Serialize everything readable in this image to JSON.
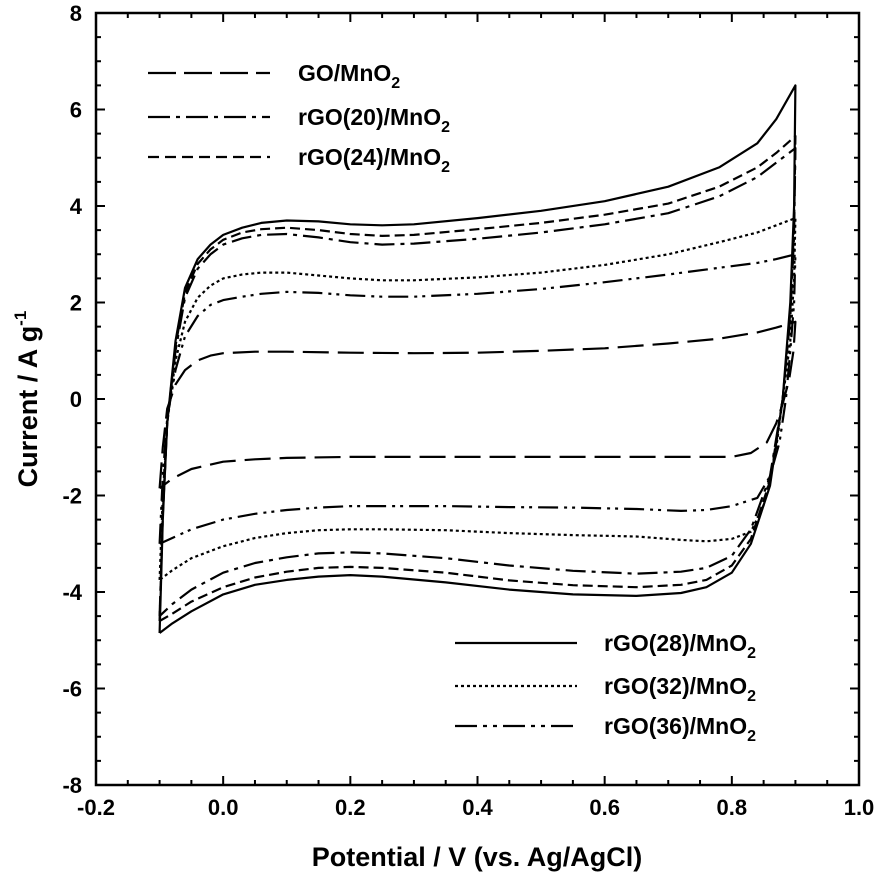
{
  "chart_data": {
    "type": "line",
    "xlabel": "Potential / V (vs. Ag/AgCl)",
    "ylabel": "Current / A g",
    "ylabel_superscript": "-1",
    "xlim": [
      -0.2,
      1.0
    ],
    "ylim": [
      -8,
      8
    ],
    "x_ticks": [
      "-0.2",
      "0.0",
      "0.2",
      "0.4",
      "0.6",
      "0.8",
      "1.0"
    ],
    "y_ticks": [
      "-8",
      "-6",
      "-4",
      "-2",
      "0",
      "2",
      "4",
      "6",
      "8"
    ],
    "grid": false,
    "legend_top_left": [
      {
        "name": "GO/MnO",
        "sub": "2",
        "style": "long-dash"
      },
      {
        "name": "rGO(20)/MnO",
        "sub": "2",
        "style": "dash-dot"
      },
      {
        "name": "rGO(24)/MnO",
        "sub": "2",
        "style": "short-dash"
      }
    ],
    "legend_bottom_right": [
      {
        "name": "rGO(28)/MnO",
        "sub": "2",
        "style": "solid"
      },
      {
        "name": "rGO(32)/MnO",
        "sub": "2",
        "style": "dotted"
      },
      {
        "name": "rGO(36)/MnO",
        "sub": "2",
        "style": "dash-dot-dot"
      }
    ],
    "series": [
      {
        "name": "rGO(28)/MnO2",
        "style": "solid",
        "anodic": [
          [
            -0.1,
            -4.85
          ],
          [
            -0.095,
            -2.5
          ],
          [
            -0.088,
            -0.5
          ],
          [
            -0.075,
            1.2
          ],
          [
            -0.06,
            2.3
          ],
          [
            -0.04,
            2.9
          ],
          [
            -0.02,
            3.2
          ],
          [
            0.0,
            3.4
          ],
          [
            0.03,
            3.55
          ],
          [
            0.06,
            3.65
          ],
          [
            0.1,
            3.7
          ],
          [
            0.15,
            3.68
          ],
          [
            0.2,
            3.62
          ],
          [
            0.25,
            3.6
          ],
          [
            0.3,
            3.62
          ],
          [
            0.4,
            3.75
          ],
          [
            0.5,
            3.9
          ],
          [
            0.6,
            4.1
          ],
          [
            0.7,
            4.4
          ],
          [
            0.78,
            4.8
          ],
          [
            0.84,
            5.3
          ],
          [
            0.87,
            5.8
          ],
          [
            0.9,
            6.5
          ]
        ],
        "cathodic": [
          [
            0.9,
            6.5
          ],
          [
            0.898,
            4.0
          ],
          [
            0.892,
            2.0
          ],
          [
            0.88,
            0.0
          ],
          [
            0.86,
            -1.8
          ],
          [
            0.83,
            -3.0
          ],
          [
            0.8,
            -3.6
          ],
          [
            0.76,
            -3.9
          ],
          [
            0.72,
            -4.02
          ],
          [
            0.65,
            -4.08
          ],
          [
            0.55,
            -4.05
          ],
          [
            0.45,
            -3.95
          ],
          [
            0.35,
            -3.8
          ],
          [
            0.25,
            -3.68
          ],
          [
            0.2,
            -3.65
          ],
          [
            0.15,
            -3.68
          ],
          [
            0.1,
            -3.75
          ],
          [
            0.05,
            -3.85
          ],
          [
            0.0,
            -4.05
          ],
          [
            -0.05,
            -4.4
          ],
          [
            -0.08,
            -4.65
          ],
          [
            -0.1,
            -4.85
          ]
        ]
      },
      {
        "name": "rGO(24)/MnO2",
        "style": "short-dash",
        "anodic": [
          [
            -0.1,
            -4.6
          ],
          [
            -0.095,
            -2.4
          ],
          [
            -0.088,
            -0.5
          ],
          [
            -0.075,
            1.1
          ],
          [
            -0.06,
            2.2
          ],
          [
            -0.04,
            2.8
          ],
          [
            -0.02,
            3.1
          ],
          [
            0.0,
            3.3
          ],
          [
            0.03,
            3.45
          ],
          [
            0.06,
            3.52
          ],
          [
            0.1,
            3.55
          ],
          [
            0.15,
            3.5
          ],
          [
            0.2,
            3.42
          ],
          [
            0.25,
            3.38
          ],
          [
            0.3,
            3.4
          ],
          [
            0.4,
            3.52
          ],
          [
            0.5,
            3.65
          ],
          [
            0.6,
            3.82
          ],
          [
            0.7,
            4.05
          ],
          [
            0.78,
            4.4
          ],
          [
            0.84,
            4.8
          ],
          [
            0.87,
            5.1
          ],
          [
            0.9,
            5.45
          ]
        ],
        "cathodic": [
          [
            0.9,
            5.45
          ],
          [
            0.898,
            3.6
          ],
          [
            0.892,
            1.8
          ],
          [
            0.88,
            0.0
          ],
          [
            0.86,
            -1.7
          ],
          [
            0.83,
            -2.9
          ],
          [
            0.8,
            -3.45
          ],
          [
            0.76,
            -3.75
          ],
          [
            0.72,
            -3.85
          ],
          [
            0.65,
            -3.9
          ],
          [
            0.55,
            -3.86
          ],
          [
            0.45,
            -3.76
          ],
          [
            0.35,
            -3.6
          ],
          [
            0.25,
            -3.5
          ],
          [
            0.2,
            -3.48
          ],
          [
            0.15,
            -3.5
          ],
          [
            0.1,
            -3.58
          ],
          [
            0.05,
            -3.7
          ],
          [
            0.0,
            -3.9
          ],
          [
            -0.05,
            -4.2
          ],
          [
            -0.08,
            -4.45
          ],
          [
            -0.1,
            -4.6
          ]
        ]
      },
      {
        "name": "rGO(20)/MnO2",
        "style": "dash-dot",
        "anodic": [
          [
            -0.1,
            -4.5
          ],
          [
            -0.095,
            -2.4
          ],
          [
            -0.088,
            -0.5
          ],
          [
            -0.075,
            1.0
          ],
          [
            -0.06,
            2.1
          ],
          [
            -0.04,
            2.7
          ],
          [
            -0.02,
            3.0
          ],
          [
            0.0,
            3.2
          ],
          [
            0.03,
            3.33
          ],
          [
            0.06,
            3.4
          ],
          [
            0.1,
            3.42
          ],
          [
            0.15,
            3.35
          ],
          [
            0.2,
            3.25
          ],
          [
            0.25,
            3.2
          ],
          [
            0.3,
            3.22
          ],
          [
            0.4,
            3.32
          ],
          [
            0.5,
            3.45
          ],
          [
            0.6,
            3.62
          ],
          [
            0.7,
            3.85
          ],
          [
            0.78,
            4.2
          ],
          [
            0.84,
            4.6
          ],
          [
            0.87,
            4.9
          ],
          [
            0.9,
            5.2
          ]
        ],
        "cathodic": [
          [
            0.9,
            5.2
          ],
          [
            0.898,
            3.4
          ],
          [
            0.892,
            1.7
          ],
          [
            0.88,
            0.0
          ],
          [
            0.86,
            -1.6
          ],
          [
            0.83,
            -2.7
          ],
          [
            0.8,
            -3.25
          ],
          [
            0.76,
            -3.5
          ],
          [
            0.72,
            -3.58
          ],
          [
            0.65,
            -3.62
          ],
          [
            0.55,
            -3.56
          ],
          [
            0.45,
            -3.45
          ],
          [
            0.35,
            -3.3
          ],
          [
            0.25,
            -3.2
          ],
          [
            0.2,
            -3.18
          ],
          [
            0.15,
            -3.2
          ],
          [
            0.1,
            -3.28
          ],
          [
            0.05,
            -3.4
          ],
          [
            0.0,
            -3.6
          ],
          [
            -0.05,
            -3.95
          ],
          [
            -0.08,
            -4.25
          ],
          [
            -0.1,
            -4.5
          ]
        ]
      },
      {
        "name": "rGO(32)/MnO2",
        "style": "dotted",
        "anodic": [
          [
            -0.1,
            -3.75
          ],
          [
            -0.095,
            -2.0
          ],
          [
            -0.088,
            -0.5
          ],
          [
            -0.075,
            0.8
          ],
          [
            -0.06,
            1.6
          ],
          [
            -0.04,
            2.1
          ],
          [
            -0.02,
            2.35
          ],
          [
            0.0,
            2.5
          ],
          [
            0.03,
            2.58
          ],
          [
            0.06,
            2.62
          ],
          [
            0.1,
            2.62
          ],
          [
            0.15,
            2.56
          ],
          [
            0.2,
            2.5
          ],
          [
            0.25,
            2.46
          ],
          [
            0.3,
            2.46
          ],
          [
            0.4,
            2.52
          ],
          [
            0.5,
            2.62
          ],
          [
            0.6,
            2.78
          ],
          [
            0.7,
            3.0
          ],
          [
            0.78,
            3.25
          ],
          [
            0.84,
            3.45
          ],
          [
            0.87,
            3.6
          ],
          [
            0.9,
            3.75
          ]
        ],
        "cathodic": [
          [
            0.9,
            3.75
          ],
          [
            0.898,
            2.5
          ],
          [
            0.892,
            1.2
          ],
          [
            0.88,
            0.0
          ],
          [
            0.87,
            -1.0
          ],
          [
            0.85,
            -2.2
          ],
          [
            0.83,
            -2.75
          ],
          [
            0.8,
            -2.9
          ],
          [
            0.76,
            -2.95
          ],
          [
            0.72,
            -2.92
          ],
          [
            0.65,
            -2.85
          ],
          [
            0.55,
            -2.82
          ],
          [
            0.45,
            -2.78
          ],
          [
            0.35,
            -2.72
          ],
          [
            0.25,
            -2.7
          ],
          [
            0.2,
            -2.7
          ],
          [
            0.15,
            -2.72
          ],
          [
            0.1,
            -2.78
          ],
          [
            0.05,
            -2.88
          ],
          [
            0.0,
            -3.05
          ],
          [
            -0.05,
            -3.3
          ],
          [
            -0.08,
            -3.55
          ],
          [
            -0.1,
            -3.75
          ]
        ]
      },
      {
        "name": "rGO(36)/MnO2",
        "style": "dash-dot-dot",
        "anodic": [
          [
            -0.1,
            -3.0
          ],
          [
            -0.095,
            -1.6
          ],
          [
            -0.088,
            -0.4
          ],
          [
            -0.075,
            0.6
          ],
          [
            -0.06,
            1.3
          ],
          [
            -0.04,
            1.72
          ],
          [
            -0.02,
            1.95
          ],
          [
            0.0,
            2.05
          ],
          [
            0.03,
            2.12
          ],
          [
            0.06,
            2.18
          ],
          [
            0.1,
            2.22
          ],
          [
            0.15,
            2.2
          ],
          [
            0.2,
            2.15
          ],
          [
            0.25,
            2.12
          ],
          [
            0.3,
            2.12
          ],
          [
            0.4,
            2.18
          ],
          [
            0.5,
            2.28
          ],
          [
            0.6,
            2.42
          ],
          [
            0.7,
            2.58
          ],
          [
            0.78,
            2.72
          ],
          [
            0.84,
            2.82
          ],
          [
            0.87,
            2.9
          ],
          [
            0.9,
            3.0
          ]
        ],
        "cathodic": [
          [
            0.9,
            3.0
          ],
          [
            0.898,
            2.0
          ],
          [
            0.892,
            1.0
          ],
          [
            0.885,
            0.0
          ],
          [
            0.875,
            -0.9
          ],
          [
            0.86,
            -1.6
          ],
          [
            0.84,
            -2.05
          ],
          [
            0.8,
            -2.22
          ],
          [
            0.76,
            -2.3
          ],
          [
            0.72,
            -2.32
          ],
          [
            0.65,
            -2.28
          ],
          [
            0.55,
            -2.25
          ],
          [
            0.45,
            -2.24
          ],
          [
            0.35,
            -2.22
          ],
          [
            0.25,
            -2.22
          ],
          [
            0.2,
            -2.22
          ],
          [
            0.15,
            -2.25
          ],
          [
            0.1,
            -2.3
          ],
          [
            0.05,
            -2.38
          ],
          [
            0.0,
            -2.5
          ],
          [
            -0.05,
            -2.7
          ],
          [
            -0.08,
            -2.88
          ],
          [
            -0.1,
            -3.0
          ]
        ]
      },
      {
        "name": "GO/MnO2",
        "style": "long-dash",
        "anodic": [
          [
            -0.1,
            -1.85
          ],
          [
            -0.095,
            -1.0
          ],
          [
            -0.088,
            -0.2
          ],
          [
            -0.075,
            0.3
          ],
          [
            -0.06,
            0.6
          ],
          [
            -0.04,
            0.8
          ],
          [
            -0.02,
            0.9
          ],
          [
            0.0,
            0.95
          ],
          [
            0.05,
            0.98
          ],
          [
            0.1,
            0.98
          ],
          [
            0.2,
            0.96
          ],
          [
            0.3,
            0.95
          ],
          [
            0.4,
            0.96
          ],
          [
            0.5,
            1.0
          ],
          [
            0.6,
            1.05
          ],
          [
            0.7,
            1.15
          ],
          [
            0.78,
            1.25
          ],
          [
            0.84,
            1.38
          ],
          [
            0.87,
            1.48
          ],
          [
            0.9,
            1.6
          ]
        ],
        "cathodic": [
          [
            0.9,
            1.6
          ],
          [
            0.897,
            1.0
          ],
          [
            0.89,
            0.4
          ],
          [
            0.88,
            -0.1
          ],
          [
            0.87,
            -0.5
          ],
          [
            0.855,
            -0.9
          ],
          [
            0.83,
            -1.12
          ],
          [
            0.8,
            -1.2
          ],
          [
            0.7,
            -1.2
          ],
          [
            0.6,
            -1.2
          ],
          [
            0.5,
            -1.2
          ],
          [
            0.4,
            -1.2
          ],
          [
            0.3,
            -1.2
          ],
          [
            0.2,
            -1.2
          ],
          [
            0.1,
            -1.22
          ],
          [
            0.05,
            -1.25
          ],
          [
            0.0,
            -1.3
          ],
          [
            -0.05,
            -1.45
          ],
          [
            -0.08,
            -1.65
          ],
          [
            -0.1,
            -1.85
          ]
        ]
      }
    ]
  }
}
